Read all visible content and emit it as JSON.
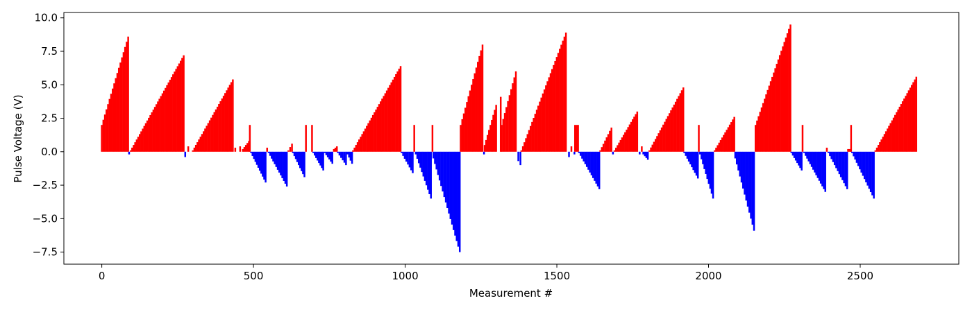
{
  "chart_data": {
    "type": "bar",
    "title": "",
    "xlabel": "Measurement #",
    "ylabel": "Pulse Voltage (V)",
    "xlim": [
      -125,
      2825
    ],
    "ylim": [
      -8.4,
      10.4
    ],
    "x_ticks": [
      0,
      500,
      1000,
      1500,
      2000,
      2500
    ],
    "y_ticks": [
      -7.5,
      -5.0,
      -2.5,
      0.0,
      2.5,
      5.0,
      7.5,
      10.0
    ],
    "x_tick_labels": [
      "0",
      "500",
      "1000",
      "1500",
      "2000",
      "2500"
    ],
    "y_tick_labels": [
      "−7.5",
      "−5.0",
      "−2.5",
      "0.0",
      "2.5",
      "5.0",
      "7.5",
      "10.0"
    ],
    "grid": false,
    "colors": {
      "positive": "#ff0000",
      "negative": "#0000ff"
    },
    "segments": [
      {
        "type": "ramp",
        "start": 0,
        "end": 87,
        "from": 2.0,
        "to": 8.6
      },
      {
        "type": "spike",
        "x": 90,
        "value": -0.2
      },
      {
        "type": "ramp",
        "start": 95,
        "end": 270,
        "from": 0.1,
        "to": 7.2
      },
      {
        "type": "spike",
        "x": 275,
        "value": -0.4
      },
      {
        "type": "spike",
        "x": 285,
        "value": 0.4
      },
      {
        "type": "ramp",
        "start": 300,
        "end": 432,
        "from": 0.1,
        "to": 5.4
      },
      {
        "type": "spike",
        "x": 440,
        "value": 0.3
      },
      {
        "type": "spike",
        "x": 456,
        "value": 0.4
      },
      {
        "type": "ramp",
        "start": 465,
        "end": 485,
        "from": 0.2,
        "to": 0.8
      },
      {
        "type": "spike",
        "x": 488,
        "value": 2.0
      },
      {
        "type": "ramp",
        "start": 492,
        "end": 540,
        "from": -0.1,
        "to": -2.3
      },
      {
        "type": "spike",
        "x": 545,
        "value": 0.3
      },
      {
        "type": "ramp",
        "start": 550,
        "end": 610,
        "from": -0.1,
        "to": -2.6
      },
      {
        "type": "ramp",
        "start": 615,
        "end": 627,
        "from": 0.1,
        "to": 0.6
      },
      {
        "type": "ramp",
        "start": 630,
        "end": 668,
        "from": -0.1,
        "to": -1.9
      },
      {
        "type": "spike",
        "x": 673,
        "value": 2.0
      },
      {
        "type": "spike",
        "x": 693,
        "value": 2.0
      },
      {
        "type": "ramp",
        "start": 697,
        "end": 730,
        "from": -0.1,
        "to": -1.4
      },
      {
        "type": "ramp",
        "start": 735,
        "end": 760,
        "from": -0.1,
        "to": -0.9
      },
      {
        "type": "ramp",
        "start": 765,
        "end": 775,
        "from": 0.2,
        "to": 0.4
      },
      {
        "type": "ramp",
        "start": 778,
        "end": 805,
        "from": -0.1,
        "to": -1.0
      },
      {
        "type": "ramp",
        "start": 810,
        "end": 825,
        "from": -0.2,
        "to": -0.9
      },
      {
        "type": "ramp",
        "start": 828,
        "end": 985,
        "from": 0.1,
        "to": 6.4
      },
      {
        "type": "ramp",
        "start": 988,
        "end": 1025,
        "from": -0.1,
        "to": -1.6
      },
      {
        "type": "spike",
        "x": 1030,
        "value": 2.0
      },
      {
        "type": "ramp",
        "start": 1035,
        "end": 1085,
        "from": -0.2,
        "to": -3.5
      },
      {
        "type": "spike",
        "x": 1090,
        "value": 2.0
      },
      {
        "type": "ramp",
        "start": 1093,
        "end": 1180,
        "from": -0.5,
        "to": -7.5
      },
      {
        "type": "ramp",
        "start": 1183,
        "end": 1255,
        "from": 2.0,
        "to": 8.0
      },
      {
        "type": "spike",
        "x": 1260,
        "value": -0.2
      },
      {
        "type": "ramp",
        "start": 1262,
        "end": 1300,
        "from": 0.5,
        "to": 3.5
      },
      {
        "type": "spike",
        "x": 1315,
        "value": 4.1
      },
      {
        "type": "ramp",
        "start": 1318,
        "end": 1365,
        "from": 2.0,
        "to": 6.0
      },
      {
        "type": "spike",
        "x": 1373,
        "value": -0.7
      },
      {
        "type": "spike",
        "x": 1380,
        "value": -1.0
      },
      {
        "type": "ramp",
        "start": 1383,
        "end": 1530,
        "from": 0.1,
        "to": 8.9
      },
      {
        "type": "spike",
        "x": 1540,
        "value": -0.4
      },
      {
        "type": "spike",
        "x": 1548,
        "value": 0.4
      },
      {
        "type": "spike",
        "x": 1558,
        "value": -0.2
      },
      {
        "type": "ramp",
        "start": 1560,
        "end": 1570,
        "from": 2.0,
        "to": 2.0
      },
      {
        "type": "ramp",
        "start": 1573,
        "end": 1640,
        "from": -0.1,
        "to": -2.8
      },
      {
        "type": "ramp",
        "start": 1643,
        "end": 1680,
        "from": 0.1,
        "to": 1.8
      },
      {
        "type": "spike",
        "x": 1685,
        "value": -0.2
      },
      {
        "type": "ramp",
        "start": 1690,
        "end": 1765,
        "from": 0.1,
        "to": 3.0
      },
      {
        "type": "spike",
        "x": 1773,
        "value": -0.2
      },
      {
        "type": "spike",
        "x": 1780,
        "value": 0.4
      },
      {
        "type": "ramp",
        "start": 1785,
        "end": 1800,
        "from": -0.2,
        "to": -0.6
      },
      {
        "type": "ramp",
        "start": 1805,
        "end": 1917,
        "from": 0.1,
        "to": 4.8
      },
      {
        "type": "ramp",
        "start": 1920,
        "end": 1965,
        "from": -0.1,
        "to": -2.0
      },
      {
        "type": "spike",
        "x": 1968,
        "value": 2.0
      },
      {
        "type": "ramp",
        "start": 1972,
        "end": 2015,
        "from": -0.2,
        "to": -3.5
      },
      {
        "type": "ramp",
        "start": 2020,
        "end": 2085,
        "from": 0.1,
        "to": 2.6
      },
      {
        "type": "ramp",
        "start": 2088,
        "end": 2150,
        "from": -0.5,
        "to": -5.9
      },
      {
        "type": "ramp",
        "start": 2155,
        "end": 2270,
        "from": 2.0,
        "to": 9.5
      },
      {
        "type": "ramp",
        "start": 2273,
        "end": 2307,
        "from": -0.1,
        "to": -1.4
      },
      {
        "type": "spike",
        "x": 2310,
        "value": 2.0
      },
      {
        "type": "ramp",
        "start": 2315,
        "end": 2385,
        "from": -0.1,
        "to": -3.0
      },
      {
        "type": "spike",
        "x": 2390,
        "value": 0.3
      },
      {
        "type": "ramp",
        "start": 2395,
        "end": 2457,
        "from": -0.1,
        "to": -2.8
      },
      {
        "type": "ramp",
        "start": 2460,
        "end": 2468,
        "from": 0.2,
        "to": 0.2
      },
      {
        "type": "spike",
        "x": 2470,
        "value": 2.0
      },
      {
        "type": "ramp",
        "start": 2473,
        "end": 2545,
        "from": -0.1,
        "to": -3.5
      },
      {
        "type": "ramp",
        "start": 2550,
        "end": 2685,
        "from": 0.1,
        "to": 5.6
      }
    ]
  }
}
